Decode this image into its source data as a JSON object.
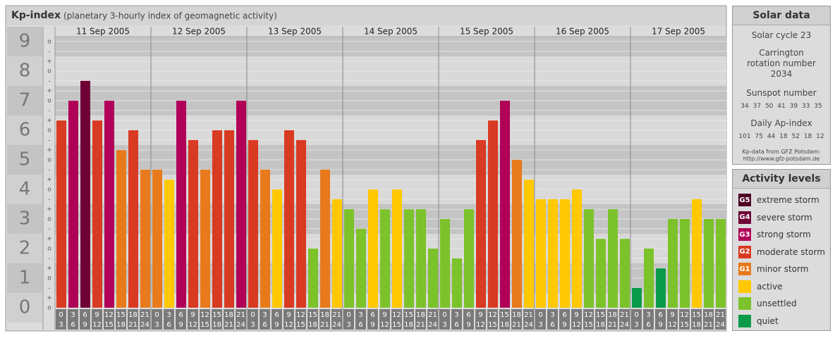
{
  "chart_data": {
    "type": "bar",
    "title": "Kp-index",
    "subtitle": "(planetary 3-hourly index of geomagnetic activity)",
    "days": [
      "11 Sep 2005",
      "12 Sep 2005",
      "13 Sep 2005",
      "14 Sep 2005",
      "15 Sep 2005",
      "16 Sep 2005",
      "17 Sep 2005"
    ],
    "interval_start": [
      "0",
      "3",
      "6",
      "9",
      "12",
      "15",
      "18",
      "21"
    ],
    "interval_end": [
      "3",
      "6",
      "9",
      "12",
      "15",
      "18",
      "21",
      "24"
    ],
    "ylim": [
      0,
      9
    ],
    "yticks": [
      0,
      1,
      2,
      3,
      4,
      5,
      6,
      7,
      8,
      9
    ],
    "minor_ticks": [
      {
        "value": 0,
        "label": "o"
      },
      {
        "value": 0.33,
        "label": "+"
      },
      {
        "value": 0.67,
        "label": "-"
      },
      {
        "value": 1,
        "label": "o"
      },
      {
        "value": 1.33,
        "label": "+"
      },
      {
        "value": 1.67,
        "label": "-"
      },
      {
        "value": 2,
        "label": "o"
      },
      {
        "value": 2.33,
        "label": "+"
      },
      {
        "value": 2.67,
        "label": "-"
      },
      {
        "value": 3,
        "label": "o"
      },
      {
        "value": 3.33,
        "label": "+"
      },
      {
        "value": 3.67,
        "label": "-"
      },
      {
        "value": 4,
        "label": "o"
      },
      {
        "value": 4.33,
        "label": "+"
      },
      {
        "value": 4.67,
        "label": "-"
      },
      {
        "value": 5,
        "label": "o"
      },
      {
        "value": 5.33,
        "label": "+"
      },
      {
        "value": 5.67,
        "label": "-"
      },
      {
        "value": 6,
        "label": "o"
      },
      {
        "value": 6.33,
        "label": "+"
      },
      {
        "value": 6.67,
        "label": "-"
      },
      {
        "value": 7,
        "label": "o"
      },
      {
        "value": 7.33,
        "label": "+"
      },
      {
        "value": 7.67,
        "label": "-"
      },
      {
        "value": 8,
        "label": "o"
      },
      {
        "value": 8.33,
        "label": "+"
      },
      {
        "value": 8.67,
        "label": "-"
      },
      {
        "value": 9,
        "label": "o"
      }
    ],
    "values": [
      6.33,
      7,
      7.67,
      6.33,
      7,
      5.33,
      6,
      4.67,
      4.67,
      4.33,
      7,
      5.67,
      4.67,
      6,
      6,
      7,
      5.67,
      4.67,
      4,
      6,
      5.67,
      2,
      4.67,
      3.67,
      3.33,
      2.67,
      4,
      3.33,
      4,
      3.33,
      3.33,
      2,
      3,
      1.67,
      3.33,
      5.67,
      6.33,
      7,
      5,
      4.33,
      3.67,
      3.67,
      3.67,
      4,
      3.33,
      2.33,
      3.33,
      2.33,
      0.67,
      2,
      1.33,
      3,
      3,
      3.67,
      3,
      3
    ],
    "colors": [
      "#d93a22",
      "#b00058",
      "#6e0035",
      "#d93a22",
      "#b00058",
      "#e87a1c",
      "#d93a22",
      "#e87a1c",
      "#e87a1c",
      "#ffc800",
      "#b00058",
      "#d93a22",
      "#e87a1c",
      "#d93a22",
      "#d93a22",
      "#b00058",
      "#d93a22",
      "#e87a1c",
      "#ffc800",
      "#d93a22",
      "#d93a22",
      "#7cc22a",
      "#e87a1c",
      "#ffc800",
      "#7cc22a",
      "#7cc22a",
      "#ffc800",
      "#7cc22a",
      "#ffc800",
      "#7cc22a",
      "#7cc22a",
      "#7cc22a",
      "#7cc22a",
      "#7cc22a",
      "#7cc22a",
      "#d93a22",
      "#d93a22",
      "#b00058",
      "#e87a1c",
      "#ffc800",
      "#ffc800",
      "#ffc800",
      "#ffc800",
      "#ffc800",
      "#7cc22a",
      "#7cc22a",
      "#7cc22a",
      "#7cc22a",
      "#0a9a4a",
      "#7cc22a",
      "#0a9a4a",
      "#7cc22a",
      "#7cc22a",
      "#ffc800",
      "#7cc22a",
      "#7cc22a"
    ]
  },
  "solar": {
    "title": "Solar data",
    "cycle": "Solar cycle 23",
    "rotation": "Carrington rotation number 2034",
    "sunspot_title": "Sunspot number",
    "sunspot": [
      34,
      37,
      50,
      41,
      39,
      33,
      35
    ],
    "ap_title": "Daily Ap-index",
    "ap": [
      101,
      75,
      44,
      18,
      52,
      18,
      12
    ],
    "source": "Kp-data from GFZ Potsdam:",
    "url": "http://www.gfz-potsdam.de"
  },
  "legend": {
    "title": "Activity levels",
    "items": [
      {
        "badge": "G5",
        "name": "extreme storm",
        "color": "#4e0024"
      },
      {
        "badge": "G4",
        "name": "severe storm",
        "color": "#6e0035"
      },
      {
        "badge": "G3",
        "name": "strong storm",
        "color": "#b00058"
      },
      {
        "badge": "G2",
        "name": "moderate storm",
        "color": "#d93a22"
      },
      {
        "badge": "G1",
        "name": "minor storm",
        "color": "#e87a1c"
      },
      {
        "name": "active",
        "color": "#ffc800"
      },
      {
        "name": "unsettled",
        "color": "#7cc22a"
      },
      {
        "name": "quiet",
        "color": "#0a9a4a"
      }
    ]
  }
}
